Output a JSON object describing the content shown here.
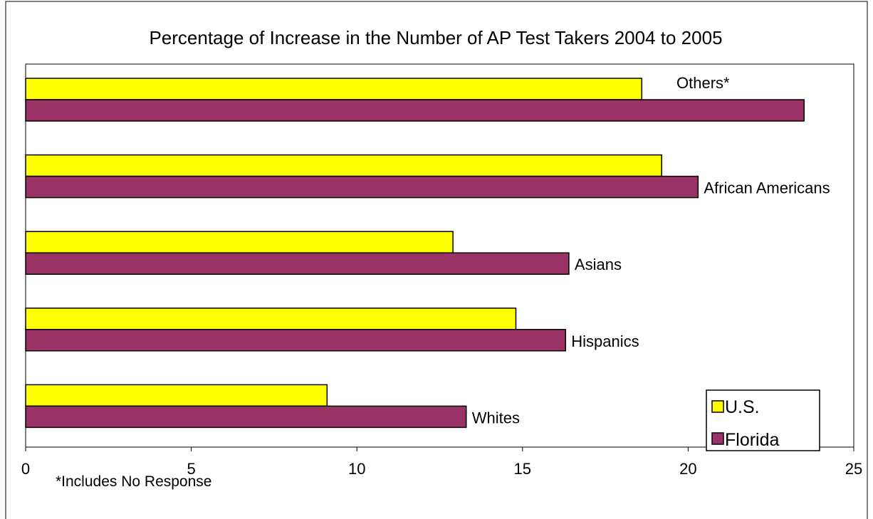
{
  "chart_data": {
    "type": "bar",
    "orientation": "horizontal",
    "title": "Percentage of Increase in the Number of AP Test Takers 2004 to 2005",
    "categories": [
      "Others*",
      "African Americans",
      "Asians",
      "Hispanics",
      "Whites"
    ],
    "series": [
      {
        "name": "U.S.",
        "color": "#ffff00",
        "values": [
          18.6,
          19.2,
          12.9,
          14.8,
          9.1
        ]
      },
      {
        "name": "Florida",
        "color": "#993366",
        "values": [
          23.5,
          20.3,
          16.4,
          16.3,
          13.3
        ]
      }
    ],
    "xlim": [
      0,
      25
    ],
    "xticks": [
      0,
      5,
      10,
      15,
      20,
      25
    ],
    "xlabel": "",
    "ylabel": "",
    "grid": false,
    "legend_position": "bottom-right",
    "footnote": "*Includes No Response"
  }
}
